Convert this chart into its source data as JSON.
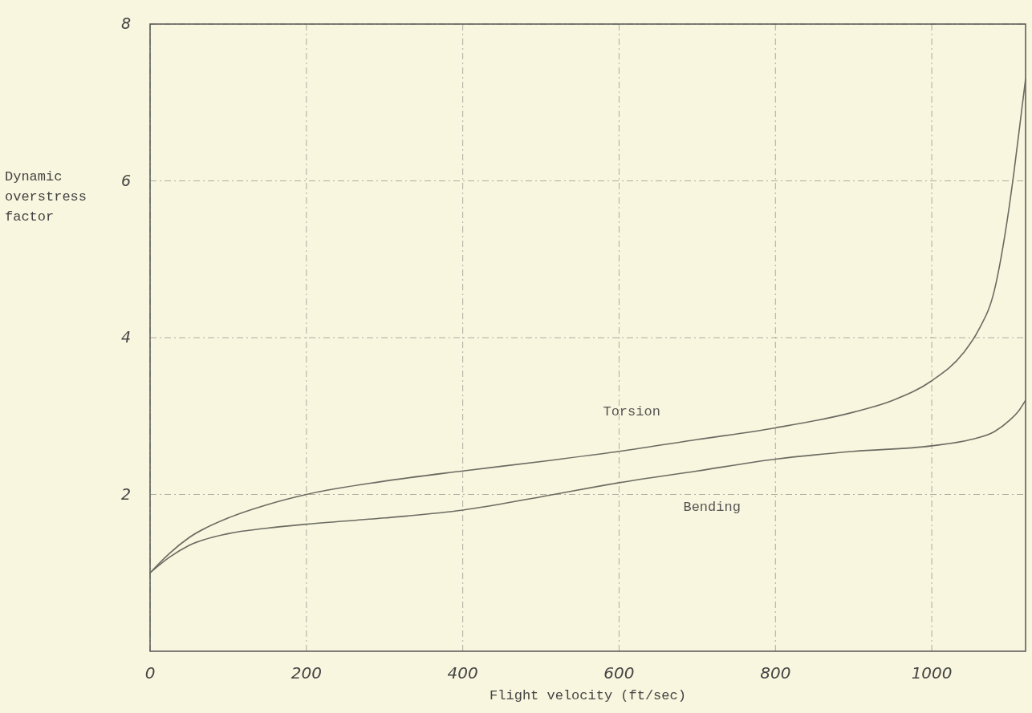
{
  "chart_data": {
    "type": "line",
    "xlabel": "Flight velocity (ft/sec)",
    "ylabel": "Dynamic overstress factor",
    "xlim": [
      0,
      1120
    ],
    "ylim": [
      0,
      8
    ],
    "xticks": [
      0,
      200,
      400,
      600,
      800,
      1000
    ],
    "yticks": [
      2,
      4,
      6,
      8
    ],
    "grid": true,
    "series": [
      {
        "name": "Torsion",
        "color": "#6b6b62",
        "x": [
          0,
          25,
          50,
          100,
          150,
          200,
          300,
          400,
          500,
          600,
          700,
          800,
          900,
          950,
          1000,
          1040,
          1060,
          1080,
          1095,
          1105,
          1115,
          1120
        ],
        "values": [
          1.0,
          1.25,
          1.45,
          1.7,
          1.87,
          2.0,
          2.17,
          2.3,
          2.42,
          2.55,
          2.7,
          2.85,
          3.05,
          3.2,
          3.45,
          3.8,
          4.1,
          4.6,
          5.4,
          6.1,
          6.9,
          7.3
        ]
      },
      {
        "name": "Bending",
        "color": "#6b6b62",
        "x": [
          0,
          25,
          50,
          100,
          150,
          200,
          300,
          400,
          500,
          600,
          700,
          800,
          900,
          1000,
          1050,
          1080,
          1100,
          1110,
          1120
        ],
        "values": [
          1.0,
          1.2,
          1.35,
          1.5,
          1.57,
          1.62,
          1.7,
          1.8,
          1.97,
          2.15,
          2.3,
          2.45,
          2.55,
          2.62,
          2.7,
          2.8,
          2.95,
          3.05,
          3.2
        ]
      }
    ]
  }
}
